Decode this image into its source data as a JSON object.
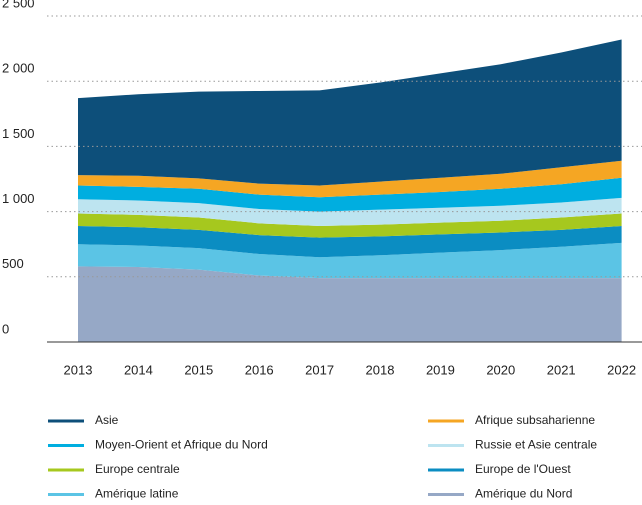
{
  "chart_data": {
    "type": "stacked-area",
    "categories": [
      "2013",
      "2014",
      "2015",
      "2016",
      "2017",
      "2018",
      "2019",
      "2020",
      "2021",
      "2022"
    ],
    "series": [
      {
        "name": "Asie",
        "color": "#0d4f7a",
        "values": [
          590,
          625,
          665,
          710,
          730,
          760,
          800,
          840,
          880,
          930
        ]
      },
      {
        "name": "Afrique subsaharienne",
        "color": "#f5a623",
        "values": [
          80,
          85,
          80,
          85,
          90,
          100,
          110,
          115,
          130,
          130
        ]
      },
      {
        "name": "Moyen-Orient et Afrique du Nord",
        "color": "#00aee0",
        "values": [
          105,
          105,
          110,
          110,
          110,
          115,
          120,
          130,
          140,
          155
        ]
      },
      {
        "name": "Russie et Asie centrale",
        "color": "#bde4f0",
        "values": [
          110,
          110,
          110,
          110,
          110,
          115,
          115,
          115,
          115,
          120
        ]
      },
      {
        "name": "Europe centrale",
        "color": "#a6c81e",
        "values": [
          95,
          95,
          95,
          90,
          90,
          90,
          90,
          90,
          95,
          95
        ]
      },
      {
        "name": "Europe de l'Ouest",
        "color": "#0b8dc2",
        "values": [
          140,
          140,
          140,
          145,
          150,
          145,
          140,
          135,
          130,
          130
        ]
      },
      {
        "name": "Amérique latine",
        "color": "#5bc4e5",
        "values": [
          170,
          165,
          165,
          165,
          160,
          175,
          195,
          215,
          240,
          270
        ]
      },
      {
        "name": "Amérique du Nord",
        "color": "#96a8c6",
        "values": [
          580,
          575,
          555,
          510,
          490,
          490,
          490,
          490,
          490,
          490
        ]
      }
    ],
    "ylim": [
      0,
      2500
    ],
    "yticks": [
      0,
      500,
      {
        "value": 1000,
        "label": "1 000"
      },
      {
        "value": 1500,
        "label": "1 500"
      },
      {
        "value": 2000,
        "label": "2 000"
      },
      {
        "value": 2500,
        "label": "2 500"
      }
    ],
    "grid": true
  }
}
